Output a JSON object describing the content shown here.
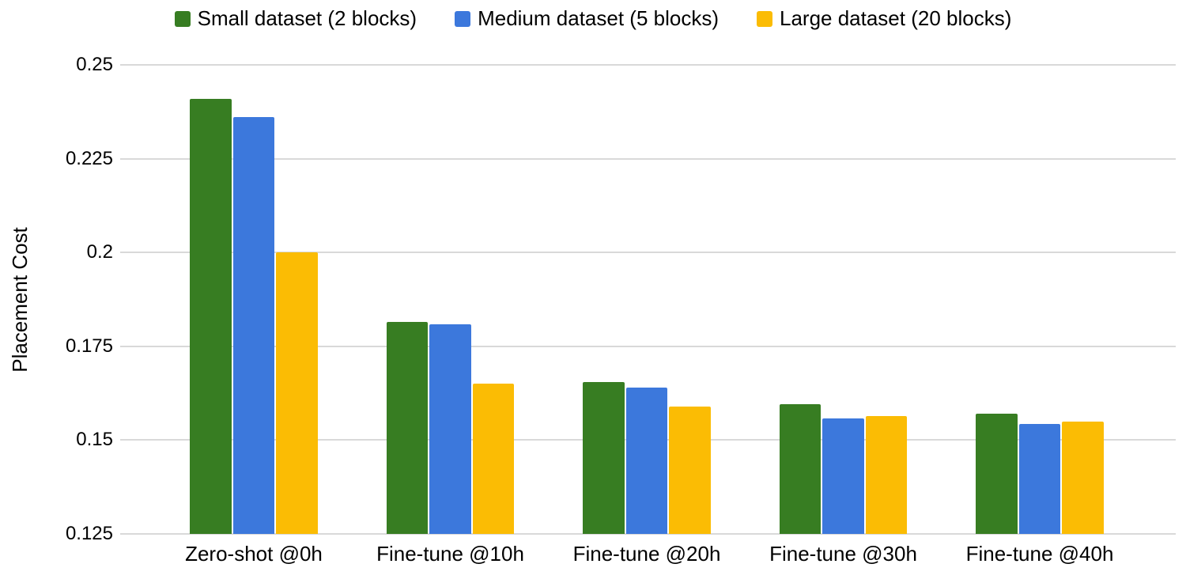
{
  "chart_data": {
    "type": "bar",
    "title": "",
    "xlabel": "",
    "ylabel": "Placement Cost",
    "categories": [
      "Zero-shot @0h",
      "Fine-tune @10h",
      "Fine-tune @20h",
      "Fine-tune @30h",
      "Fine-tune @40h"
    ],
    "series": [
      {
        "name": "Small dataset (2 blocks)",
        "color": "#377d22",
        "values": [
          0.241,
          0.1815,
          0.1655,
          0.1595,
          0.157
        ]
      },
      {
        "name": "Medium dataset (5 blocks)",
        "color": "#3c78dc",
        "values": [
          0.236,
          0.1808,
          0.164,
          0.1558,
          0.1543
        ]
      },
      {
        "name": "Large dataset (20 blocks)",
        "color": "#fbbc04",
        "values": [
          0.2,
          0.165,
          0.159,
          0.1565,
          0.155
        ]
      }
    ],
    "ylim": [
      0.125,
      0.25
    ],
    "yticks": [
      {
        "value": 0.25,
        "label": "0.25"
      },
      {
        "value": 0.225,
        "label": "0.225"
      },
      {
        "value": 0.2,
        "label": "0.2"
      },
      {
        "value": 0.175,
        "label": "0.175"
      },
      {
        "value": 0.15,
        "label": "0.15"
      },
      {
        "value": 0.125,
        "label": "0.125"
      }
    ],
    "grid": true,
    "legend_position": "top",
    "colors": {
      "gridline": "#d9d9d9",
      "axis_text": "#000000",
      "background": "#ffffff"
    }
  }
}
